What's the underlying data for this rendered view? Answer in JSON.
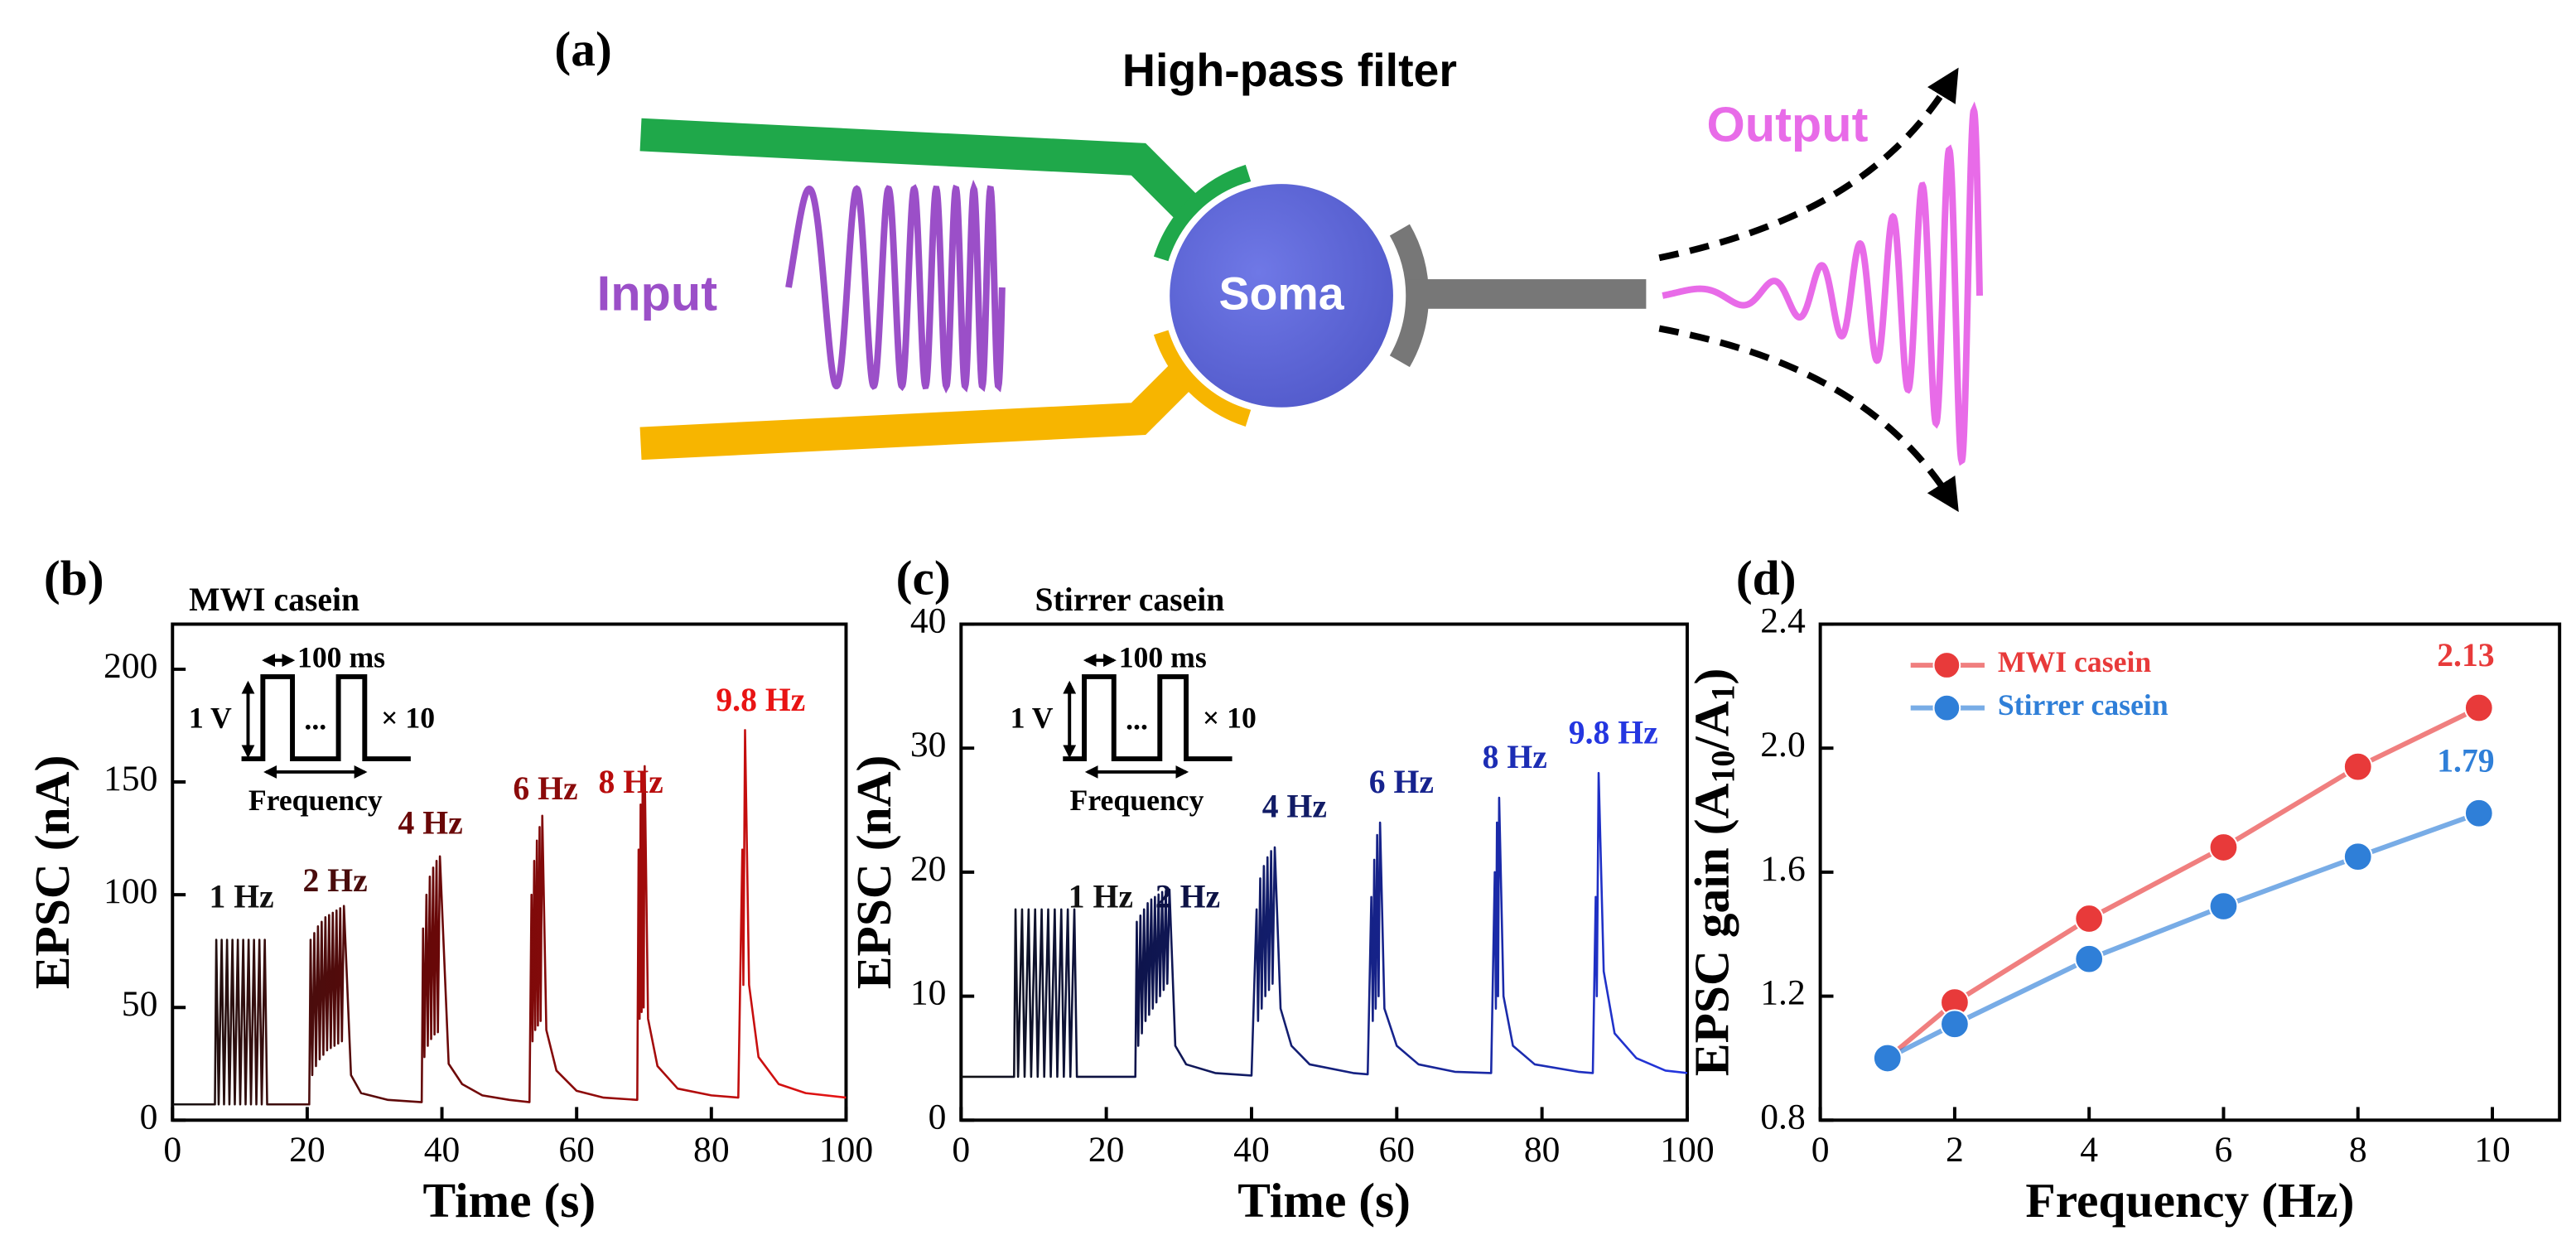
{
  "diagram": {
    "label": "(a)",
    "title": "High-pass filter",
    "input": "Input",
    "soma": "Soma",
    "output": "Output"
  },
  "chart_data": [
    {
      "type": "line",
      "label": "(b)",
      "title": "MWI casein",
      "xlabel": "Time (s)",
      "ylabel": "EPSC (nA)",
      "xlim": [
        0,
        100
      ],
      "ylim": [
        0,
        220
      ],
      "xticks": [
        0,
        20,
        40,
        60,
        80,
        100
      ],
      "yticks": [
        0,
        50,
        100,
        150,
        200
      ],
      "x": [
        0,
        6.3,
        6.5,
        6.85,
        7.3,
        7.65,
        8.1,
        8.45,
        8.9,
        9.25,
        9.7,
        10.05,
        10.5,
        10.85,
        11.3,
        11.65,
        12.1,
        12.45,
        12.9,
        13.25,
        13.7,
        14.05,
        20.3,
        20.5,
        20.75,
        21.05,
        21.3,
        21.6,
        21.85,
        22.15,
        22.4,
        22.7,
        22.95,
        23.25,
        23.5,
        23.8,
        24.05,
        24.35,
        24.6,
        24.9,
        25.15,
        25.45,
        26.5,
        28,
        32,
        37,
        37.2,
        37.4,
        37.7,
        37.9,
        38.2,
        38.4,
        38.7,
        38.9,
        39.2,
        39.4,
        39.7,
        41,
        43,
        46,
        50,
        53,
        53.3,
        53.45,
        53.7,
        53.85,
        54.1,
        54.25,
        54.5,
        54.65,
        54.9,
        55.5,
        57,
        60,
        64,
        69,
        69.2,
        69.35,
        69.5,
        69.65,
        69.8,
        69.95,
        70.1,
        70.6,
        72,
        75,
        80,
        84,
        84.6,
        84.75,
        85.0,
        85.6,
        87,
        90,
        94,
        100
      ],
      "values": [
        7,
        7,
        80,
        7,
        80,
        7,
        80,
        7,
        80,
        7,
        80,
        7,
        80,
        7,
        80,
        7,
        80,
        7,
        80,
        7,
        80,
        7,
        7,
        80,
        20,
        83,
        24,
        86,
        27,
        88,
        29,
        90,
        31,
        91,
        32,
        92,
        33,
        93,
        34,
        94,
        35,
        95,
        20,
        12,
        9,
        8,
        85,
        28,
        100,
        33,
        108,
        36,
        112,
        38,
        115,
        39,
        117,
        25,
        16,
        11,
        9,
        8,
        100,
        35,
        115,
        40,
        124,
        42,
        130,
        44,
        135,
        40,
        22,
        13,
        10,
        9,
        120,
        45,
        140,
        48,
        150,
        50,
        157,
        45,
        24,
        14,
        11,
        10,
        120,
        60,
        173,
        60,
        28,
        16,
        12,
        10
      ],
      "annotations": [
        {
          "text": "1 Hz",
          "color": "#111111"
        },
        {
          "text": "2 Hz",
          "color": "#4a0c0c"
        },
        {
          "text": "4 Hz",
          "color": "#6a0808"
        },
        {
          "text": "6 Hz",
          "color": "#8a0a0a"
        },
        {
          "text": "8 Hz",
          "color": "#b80c0c"
        },
        {
          "text": "9.8 Hz",
          "color": "#e81414"
        }
      ],
      "inset": {
        "voltage": "1 V",
        "width": "100 ms",
        "dots": "...",
        "count": "× 10",
        "frequency": "Frequency"
      }
    },
    {
      "type": "line",
      "label": "(c)",
      "title": "Stirrer casein",
      "xlabel": "Time (s)",
      "ylabel": "EPSC (nA)",
      "xlim": [
        0,
        100
      ],
      "ylim": [
        0,
        40
      ],
      "xticks": [
        0,
        20,
        40,
        60,
        80,
        100
      ],
      "yticks": [
        0,
        10,
        20,
        30,
        40
      ],
      "x": [
        0,
        7.3,
        7.5,
        7.85,
        8.4,
        8.75,
        9.3,
        9.65,
        10.2,
        10.55,
        11.1,
        11.45,
        12.0,
        12.35,
        12.9,
        13.25,
        13.8,
        14.15,
        14.7,
        15.05,
        15.6,
        15.95,
        24,
        24.2,
        24.4,
        24.7,
        24.9,
        25.2,
        25.4,
        25.7,
        25.9,
        26.2,
        26.4,
        26.7,
        26.9,
        27.2,
        27.4,
        27.7,
        27.9,
        28.2,
        28.4,
        28.7,
        29.5,
        31,
        35,
        40,
        40.7,
        40.9,
        41.2,
        41.4,
        41.7,
        41.9,
        42.2,
        42.4,
        42.7,
        42.9,
        43.2,
        44,
        45.5,
        48,
        54,
        56,
        56.5,
        56.7,
        56.9,
        57.1,
        57.3,
        57.5,
        57.7,
        58.3,
        60,
        63,
        68,
        73,
        73.5,
        73.65,
        73.8,
        73.95,
        74.1,
        74.7,
        76,
        79,
        85,
        87,
        87.4,
        87.55,
        87.8,
        88.5,
        90,
        93,
        97,
        100
      ],
      "values": [
        3.5,
        3.5,
        17,
        3.5,
        17,
        3.5,
        17,
        3.5,
        17,
        3.5,
        17,
        3.5,
        17,
        3.5,
        17,
        3.5,
        17,
        3.5,
        17,
        3.5,
        17,
        3.5,
        3.5,
        16,
        6,
        16.5,
        7,
        17,
        8,
        17.5,
        8.5,
        17.8,
        9,
        18,
        9.5,
        18.2,
        10,
        18.4,
        10.5,
        18.5,
        11,
        18.6,
        6,
        4.5,
        3.8,
        3.6,
        17,
        8,
        19.5,
        9,
        20.5,
        10,
        21.2,
        10.5,
        21.7,
        11,
        22,
        9,
        6,
        4.5,
        3.8,
        3.7,
        18,
        8,
        21,
        9,
        23,
        10,
        24,
        9,
        6,
        4.5,
        3.9,
        3.8,
        20,
        9,
        24,
        10,
        26,
        10,
        6,
        4.5,
        3.9,
        3.8,
        18,
        10,
        28,
        12,
        7,
        5,
        4,
        3.8
      ],
      "annotations": [
        {
          "text": "1 Hz",
          "color": "#111111"
        },
        {
          "text": "2 Hz",
          "color": "#0d1245"
        },
        {
          "text": "4 Hz",
          "color": "#121c66"
        },
        {
          "text": "6 Hz",
          "color": "#16238e"
        },
        {
          "text": "8 Hz",
          "color": "#1c2db4"
        },
        {
          "text": "9.8 Hz",
          "color": "#2436e0"
        }
      ],
      "inset": {
        "voltage": "1 V",
        "width": "100 ms",
        "dots": "...",
        "count": "× 10",
        "frequency": "Frequency"
      }
    },
    {
      "type": "line",
      "label": "(d)",
      "xlabel": "Frequency (Hz)",
      "ylabel": [
        "EPSC gain (A",
        "10",
        "/A",
        "1",
        ")"
      ],
      "xlim": [
        0,
        11
      ],
      "ylim": [
        0.8,
        2.4
      ],
      "xticks": [
        0,
        2,
        4,
        6,
        8,
        10
      ],
      "yticks": [
        0.8,
        1.2,
        1.6,
        {
          "value": 2,
          "label": "2.0"
        },
        2.4
      ],
      "x": [
        1,
        2,
        4,
        6,
        8,
        9.8
      ],
      "markers": true,
      "legend": "upper left",
      "series": [
        {
          "name": "MWI casein",
          "color": "#e83a3a",
          "values": [
            1.0,
            1.18,
            1.45,
            1.68,
            1.94,
            2.13
          ]
        },
        {
          "name": "Stirrer casein",
          "color": "#2f7fd8",
          "values": [
            1.0,
            1.11,
            1.32,
            1.49,
            1.65,
            1.79
          ]
        }
      ]
    }
  ]
}
